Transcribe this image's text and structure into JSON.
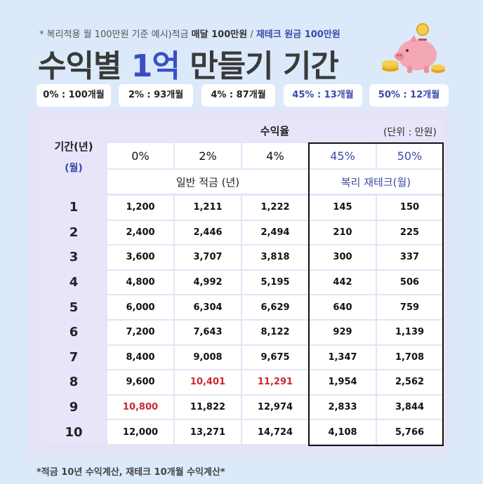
{
  "header": {
    "note_prefix": "* 복리적용 월 100만원 기준 예시)적금 ",
    "note_bold": "매달 100만원",
    "note_sep": " / ",
    "note_blue": "재테크 원금 100만원",
    "title_part1": "수익별 ",
    "title_accent": "1억",
    "title_part2": " 만들기 기간"
  },
  "chips": [
    {
      "label": "0% : 100개월",
      "highlight": false
    },
    {
      "label": "2% : 93개월",
      "highlight": false
    },
    {
      "label": "4% : 87개월",
      "highlight": false
    },
    {
      "label": "45% : 13개월",
      "highlight": true
    },
    {
      "label": "50% : 12개월",
      "highlight": true
    }
  ],
  "table": {
    "period_header": "기간(년)",
    "period_sub": "(월)",
    "rate_header": "수익율",
    "unit_label": "(단위 : 만원)",
    "rates": [
      "0%",
      "2%",
      "4%",
      "45%",
      "50%"
    ],
    "group_savings": "일반 적금 (년)",
    "group_invest": "복리 재테크(월)",
    "rows": [
      {
        "period": "1",
        "values": [
          "1,200",
          "1,211",
          "1,222",
          "145",
          "150"
        ],
        "red": []
      },
      {
        "period": "2",
        "values": [
          "2,400",
          "2,446",
          "2,494",
          "210",
          "225"
        ],
        "red": []
      },
      {
        "period": "3",
        "values": [
          "3,600",
          "3,707",
          "3,818",
          "300",
          "337"
        ],
        "red": []
      },
      {
        "period": "4",
        "values": [
          "4,800",
          "4,992",
          "5,195",
          "442",
          "506"
        ],
        "red": []
      },
      {
        "period": "5",
        "values": [
          "6,000",
          "6,304",
          "6,629",
          "640",
          "759"
        ],
        "red": []
      },
      {
        "period": "6",
        "values": [
          "7,200",
          "7,643",
          "8,122",
          "929",
          "1,139"
        ],
        "red": []
      },
      {
        "period": "7",
        "values": [
          "8,400",
          "9,008",
          "9,675",
          "1,347",
          "1,708"
        ],
        "red": []
      },
      {
        "period": "8",
        "values": [
          "9,600",
          "10,401",
          "11,291",
          "1,954",
          "2,562"
        ],
        "red": [
          1,
          2
        ]
      },
      {
        "period": "9",
        "values": [
          "10,800",
          "11,822",
          "12,974",
          "2,833",
          "3,844"
        ],
        "red": [
          0
        ]
      },
      {
        "period": "10",
        "values": [
          "12,000",
          "13,271",
          "14,724",
          "4,108",
          "5,766"
        ],
        "red": []
      }
    ]
  },
  "footer": {
    "note": "*적금 10년 수익계산, 재테크 10개월 수익계산*"
  },
  "colors": {
    "accent_blue": "#3b4fc4",
    "highlight_red": "#c8282c",
    "lavender": "#e8e4fa",
    "background": "#dbe9fb"
  }
}
